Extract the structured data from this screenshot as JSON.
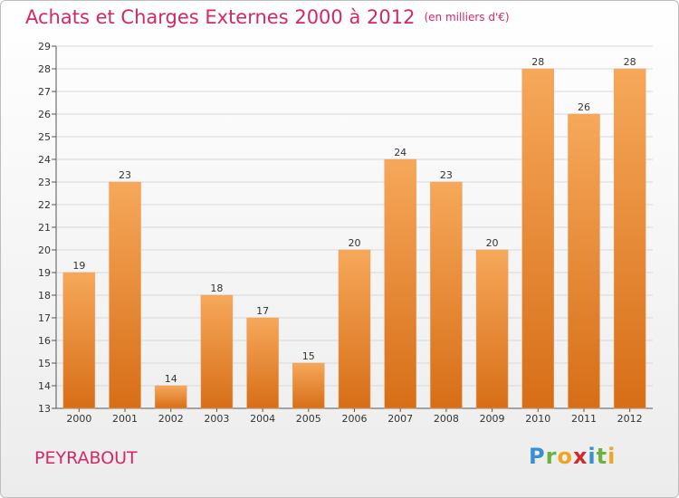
{
  "header": {
    "title": "Achats et Charges Externes 2000 à 2012",
    "subtitle": "(en milliers d'€)"
  },
  "footer": {
    "commune": "PEYRABOUT",
    "logo_text": "Proxiti"
  },
  "colors": {
    "bar_light": "#f6a85a",
    "bar_dark": "#d76e17",
    "accent": "#d2286a",
    "grid": "#d8d8d8"
  },
  "chart_data": {
    "type": "bar",
    "title": "Achats et Charges Externes 2000 à 2012",
    "subtitle": "(en milliers d'€)",
    "categories": [
      "2000",
      "2001",
      "2002",
      "2003",
      "2004",
      "2005",
      "2006",
      "2007",
      "2008",
      "2009",
      "2010",
      "2011",
      "2012"
    ],
    "values": [
      19,
      23,
      14,
      18,
      17,
      15,
      20,
      24,
      23,
      20,
      28,
      26,
      28
    ],
    "ylim": [
      13,
      29
    ],
    "yticks": [
      13,
      14,
      15,
      16,
      17,
      18,
      19,
      20,
      21,
      22,
      23,
      24,
      25,
      26,
      27,
      28,
      29
    ],
    "grid": true,
    "legend": "none"
  }
}
